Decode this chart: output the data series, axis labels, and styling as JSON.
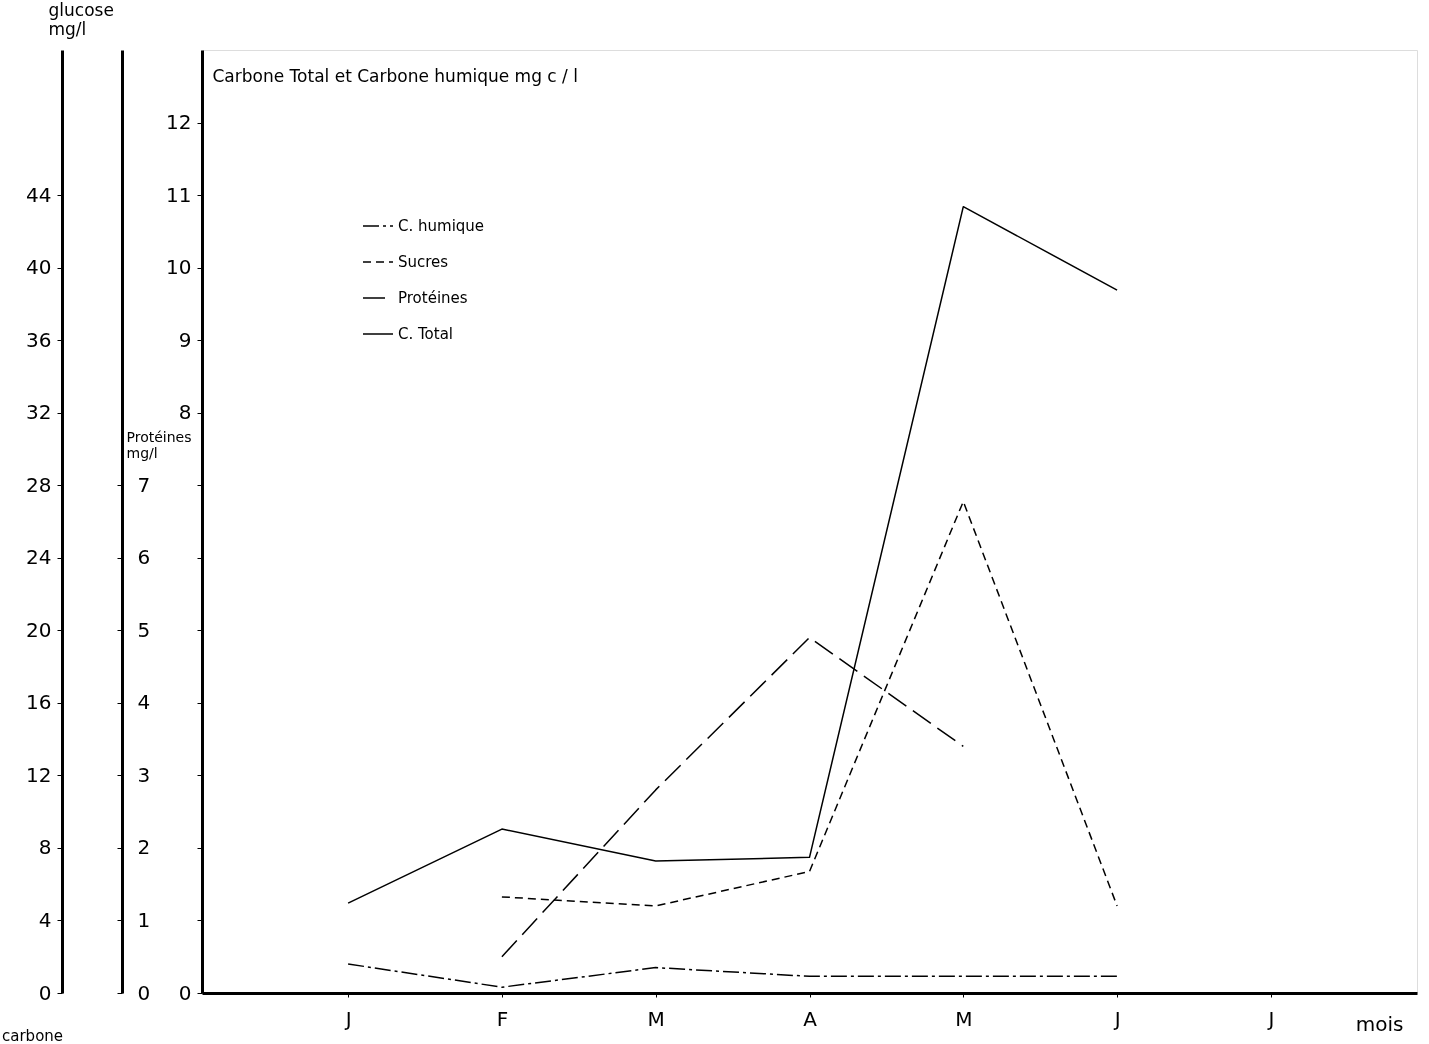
{
  "chart_data": {
    "type": "line",
    "categories": [
      "J",
      "F",
      "M",
      "A",
      "M",
      "J",
      "J"
    ],
    "xlabel": "mois",
    "ylabel": "Carbone Total et Carbone humique mg c / l",
    "y3label": "glucose mg/l",
    "y2label": "Protéines mg/l",
    "ylim": [
      0,
      13
    ],
    "yticks": [
      0,
      {
        "value": 1,
        "label": null
      },
      {
        "value": 2,
        "label": null
      },
      {
        "value": 3,
        "label": null
      },
      {
        "value": 4,
        "label": null
      },
      {
        "value": 5,
        "label": null
      },
      {
        "value": 6,
        "label": null
      },
      {
        "value": 7,
        "label": null
      },
      8,
      9,
      10,
      11,
      12
    ],
    "y3lim": [
      0,
      52
    ],
    "y3ticks": [
      0,
      4,
      8,
      12,
      16,
      20,
      24,
      28,
      32,
      36,
      40,
      44
    ],
    "y2lim": [
      0,
      13
    ],
    "y2ticks": [
      0,
      1,
      2,
      3,
      4,
      5,
      6,
      7
    ],
    "series": [
      {
        "name": "C. humique",
        "color": "#000000",
        "line_style": "dashdot",
        "values": [
          0.4,
          0.08,
          0.35,
          0.23,
          0.23,
          0.23,
          null
        ]
      },
      {
        "name": "Sucres",
        "color": "#000000",
        "line_style": "dashed",
        "axis": "y3",
        "values": [
          null,
          5.3,
          4.8,
          6.7,
          27.1,
          4.8,
          null
        ]
      },
      {
        "name": "Protéines",
        "color": "#000000",
        "line_style": "longdash",
        "axis": "y2",
        "values": [
          null,
          0.5,
          2.8,
          4.9,
          3.4,
          null,
          null
        ]
      },
      {
        "name": "C. Total",
        "color": "#000000",
        "line_style": "solid",
        "values": [
          1.24,
          2.26,
          1.82,
          1.87,
          10.84,
          9.69,
          null
        ]
      }
    ],
    "legend": "top left",
    "grid": false,
    "marker": "none",
    "annotations": [
      "carbone"
    ]
  }
}
